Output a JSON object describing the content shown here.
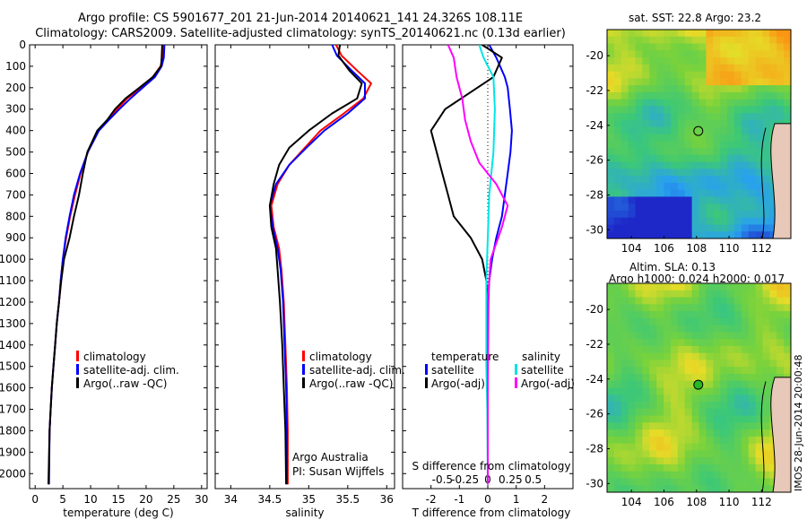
{
  "titles": {
    "line1": "Argo profile: CS 5901677_201 21-Jun-2014 20140621_141 24.326S 108.11E",
    "line2": "Climatology: CARS2009. Satellite-adjusted climatology: synTS_20140621.nc (0.13d earlier)"
  },
  "colors": {
    "climatology": "#ff0000",
    "satellite": "#0000ff",
    "argo": "#000000",
    "satellite_s": "#00e5e5",
    "argo_s": "#ff00ff"
  },
  "chart_data": [
    {
      "type": "line",
      "id": "temperature",
      "xlabel": "temperature (deg C)",
      "ylabel": "",
      "xlim": [
        -1,
        31
      ],
      "ylim": [
        2070,
        0
      ],
      "xticks": [
        "0",
        "5",
        "10",
        "15",
        "20",
        "25",
        "30"
      ],
      "xtick_values": [
        0,
        5,
        10,
        15,
        20,
        25,
        30
      ],
      "yticks": [
        "0",
        "100",
        "200",
        "300",
        "400",
        "500",
        "600",
        "700",
        "800",
        "900",
        "1000",
        "1100",
        "1200",
        "1300",
        "1400",
        "1500",
        "1600",
        "1700",
        "1800",
        "1900",
        "2000"
      ],
      "ytick_values": [
        0,
        100,
        200,
        300,
        400,
        500,
        600,
        700,
        800,
        900,
        1000,
        1100,
        1200,
        1300,
        1400,
        1500,
        1600,
        1700,
        1800,
        1900,
        2000
      ],
      "legend": [
        "climatology",
        "satellite-adj. clim.",
        "Argo(..raw -QC)"
      ],
      "series": [
        {
          "name": "climatology",
          "color_key": "climatology",
          "x": [
            23.1,
            23.0,
            22.6,
            21.2,
            19.0,
            16.6,
            14.8,
            13.2,
            11.4,
            9.5,
            8.2,
            7.2,
            6.3,
            5.6,
            5.0,
            4.6,
            4.3,
            3.9,
            3.6,
            3.3,
            3.0,
            2.8,
            2.6,
            2.45
          ],
          "y": [
            0,
            60,
            100,
            150,
            200,
            250,
            300,
            350,
            400,
            500,
            600,
            700,
            800,
            900,
            1000,
            1100,
            1200,
            1300,
            1400,
            1500,
            1600,
            1700,
            1800,
            2050
          ]
        },
        {
          "name": "satellite-adj. clim.",
          "color_key": "satellite",
          "x": [
            23.3,
            23.2,
            22.8,
            21.6,
            19.4,
            17.2,
            15.2,
            13.3,
            11.5,
            9.5,
            8.1,
            7.0,
            6.2,
            5.5,
            5.0,
            4.6,
            4.3,
            3.9,
            3.6,
            3.3,
            3.0,
            2.8,
            2.6,
            2.5
          ],
          "y": [
            0,
            60,
            100,
            150,
            200,
            250,
            300,
            350,
            400,
            500,
            600,
            700,
            800,
            900,
            1000,
            1100,
            1200,
            1300,
            1400,
            1500,
            1600,
            1700,
            1800,
            2050
          ]
        },
        {
          "name": "Argo(..raw -QC)",
          "color_key": "argo",
          "x": [
            22.9,
            22.8,
            22.7,
            21.2,
            18.8,
            16.3,
            14.4,
            13.0,
            11.2,
            9.4,
            8.6,
            7.9,
            7.0,
            6.2,
            5.2,
            4.7,
            4.3,
            3.9,
            3.6,
            3.3,
            3.0,
            2.8,
            2.6,
            2.4
          ],
          "y": [
            0,
            60,
            100,
            150,
            200,
            250,
            300,
            350,
            400,
            500,
            600,
            700,
            800,
            900,
            1000,
            1100,
            1200,
            1300,
            1400,
            1500,
            1600,
            1700,
            1800,
            2050
          ]
        }
      ]
    },
    {
      "type": "line",
      "id": "salinity",
      "xlabel": "salinity",
      "xlim": [
        33.8,
        36.1
      ],
      "ylim": [
        2070,
        0
      ],
      "xticks": [
        "34",
        "34.5",
        "35",
        "35.5",
        "36"
      ],
      "xtick_values": [
        34,
        34.5,
        35,
        35.5,
        36
      ],
      "legend": [
        "climatology",
        "satellite-adj. clim.",
        "Argo(..raw -QC)"
      ],
      "footnote": [
        "Argo Australia",
        "PI: Susan Wijffels"
      ],
      "series": [
        {
          "name": "climatology",
          "color_key": "climatology",
          "x": [
            35.35,
            35.42,
            35.62,
            35.8,
            35.7,
            35.45,
            35.15,
            34.95,
            34.75,
            34.6,
            34.52,
            34.55,
            34.62,
            34.65,
            34.68,
            34.7,
            34.72,
            34.73,
            34.73
          ],
          "y": [
            0,
            50,
            120,
            180,
            250,
            320,
            400,
            480,
            560,
            650,
            750,
            850,
            950,
            1050,
            1200,
            1400,
            1600,
            1800,
            2050
          ]
        },
        {
          "name": "satellite-adj. clim.",
          "color_key": "satellite",
          "x": [
            35.3,
            35.36,
            35.55,
            35.72,
            35.72,
            35.5,
            35.2,
            34.97,
            34.75,
            34.58,
            34.5,
            34.54,
            34.6,
            34.64,
            34.67,
            34.69,
            34.71,
            34.72,
            34.72
          ],
          "y": [
            0,
            50,
            120,
            180,
            250,
            320,
            400,
            480,
            560,
            650,
            750,
            850,
            950,
            1050,
            1200,
            1400,
            1600,
            1800,
            2050
          ]
        },
        {
          "name": "Argo(..raw -QC)",
          "color_key": "argo",
          "x": [
            35.4,
            35.38,
            35.52,
            35.68,
            35.62,
            35.3,
            35.0,
            34.75,
            34.62,
            34.55,
            34.5,
            34.52,
            34.58,
            34.6,
            34.63,
            34.66,
            34.68,
            34.7,
            34.71
          ],
          "y": [
            0,
            50,
            120,
            180,
            250,
            320,
            400,
            480,
            560,
            650,
            750,
            850,
            950,
            1050,
            1200,
            1400,
            1600,
            1800,
            2050
          ]
        }
      ]
    },
    {
      "type": "line",
      "id": "difference",
      "xlabel": "T difference from climatology",
      "top_label": "S difference from climatology",
      "xlim": [
        -3.0,
        3.0
      ],
      "ylim": [
        2070,
        0
      ],
      "xticks": [
        "-2",
        "-1",
        "0",
        "1",
        "2"
      ],
      "xtick_values": [
        -2,
        -1,
        0,
        1,
        2
      ],
      "sticks": [
        "-0.5",
        "-0.25",
        "0",
        "0.25",
        "0.5"
      ],
      "stick_values": [
        -1.6,
        -0.8,
        0.0,
        0.8,
        1.6
      ],
      "legend_t": [
        "temperature",
        "satellite",
        "Argo(-adj)"
      ],
      "legend_s": [
        "salinity",
        "satellite",
        "Argo(-adj)"
      ],
      "series": [
        {
          "name": "T satellite",
          "color_key": "satellite",
          "x": [
            0.05,
            0.3,
            0.6,
            0.7,
            0.78,
            0.85,
            0.8,
            0.7,
            0.6,
            0.5,
            0.3,
            0.15,
            0.05,
            0.02,
            0.01,
            0.0,
            0.0
          ],
          "y": [
            0,
            60,
            150,
            200,
            300,
            400,
            500,
            600,
            700,
            800,
            900,
            1000,
            1100,
            1200,
            1400,
            1600,
            2050
          ]
        },
        {
          "name": "T Argo(-adj)",
          "color_key": "argo",
          "x": [
            -0.2,
            0.5,
            0.2,
            -1.5,
            -2.0,
            -1.8,
            -1.6,
            -1.4,
            -1.2,
            -0.6,
            -0.2,
            -0.05,
            0.0,
            0.0,
            0.0
          ],
          "y": [
            0,
            60,
            150,
            300,
            400,
            500,
            600,
            700,
            800,
            900,
            1000,
            1100,
            1200,
            1400,
            2050
          ]
        },
        {
          "name": "S satellite",
          "color_key": "satellite_s",
          "x": [
            -0.3,
            -0.15,
            0.2,
            0.25,
            0.2,
            0.05,
            0.0,
            -0.05,
            -0.05,
            -0.05,
            -0.02,
            0.0
          ],
          "y": [
            0,
            60,
            150,
            300,
            500,
            700,
            900,
            1100,
            1300,
            1500,
            1700,
            2050
          ]
        },
        {
          "name": "S Argo(-adj)",
          "color_key": "argo_s",
          "x": [
            -1.4,
            -1.2,
            -1.1,
            -0.9,
            -0.8,
            -0.6,
            -0.3,
            0.3,
            0.7,
            0.5,
            0.1,
            0.0,
            0.0
          ],
          "y": [
            0,
            60,
            150,
            250,
            350,
            450,
            550,
            650,
            750,
            850,
            1000,
            1200,
            2050
          ]
        }
      ]
    }
  ],
  "maps": [
    {
      "id": "sst-map",
      "title": "sat. SST: 22.8  Argo: 23.2",
      "lon_ticks": [
        "104",
        "106",
        "108",
        "110",
        "112"
      ],
      "lon_values": [
        104,
        106,
        108,
        110,
        112
      ],
      "lat_ticks": [
        "-20",
        "-22",
        "-24",
        "-26",
        "-28",
        "-30"
      ],
      "lat_values": [
        -20,
        -22,
        -24,
        -26,
        -28,
        -30
      ],
      "lon_range": [
        102.5,
        113.8
      ],
      "lat_range": [
        -30.5,
        -18.5
      ],
      "marker": {
        "lon": 108.11,
        "lat": -24.326,
        "filled": false
      }
    },
    {
      "id": "sla-map",
      "title_lines": [
        "Altim. SLA: 0.13",
        "Argo h1000: 0.024 h2000: 0.017"
      ],
      "lon_ticks": [
        "104",
        "106",
        "108",
        "110",
        "112"
      ],
      "lon_values": [
        104,
        106,
        108,
        110,
        112
      ],
      "lat_ticks": [
        "-20",
        "-22",
        "-24",
        "-26",
        "-28",
        "-30"
      ],
      "lat_values": [
        -20,
        -22,
        -24,
        -26,
        -28,
        -30
      ],
      "lon_range": [
        102.5,
        113.8
      ],
      "lat_range": [
        -30.5,
        -18.5
      ],
      "marker": {
        "lon": 108.11,
        "lat": -24.326,
        "filled": true
      }
    }
  ],
  "credit": "IMOS 28-Jun-2014 20:00:48"
}
